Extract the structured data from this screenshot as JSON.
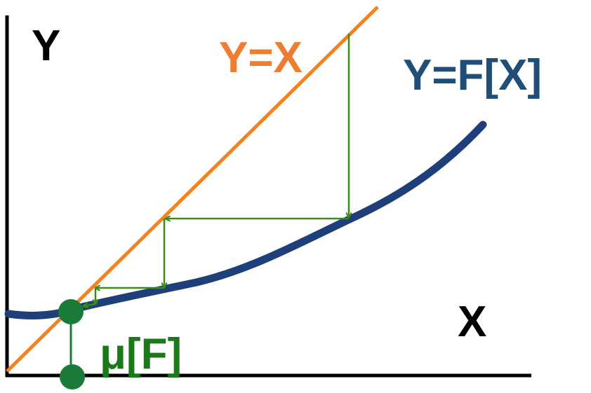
{
  "labels": {
    "y_axis": "Y",
    "x_axis": "X",
    "identity_line": "Y=X",
    "function_curve": "Y=F[X]",
    "fixed_point": "μ[F]"
  },
  "colors": {
    "axes": "#000000",
    "identity_line": "#f58220",
    "function_curve": "#1f3f7a",
    "iteration_arrows": "#3a8c14",
    "fixed_point": "#1a7a3a",
    "identity_label": "#ee7d31",
    "function_label": "#1f4e79",
    "fixed_point_label": "#1a7a1a"
  }
}
